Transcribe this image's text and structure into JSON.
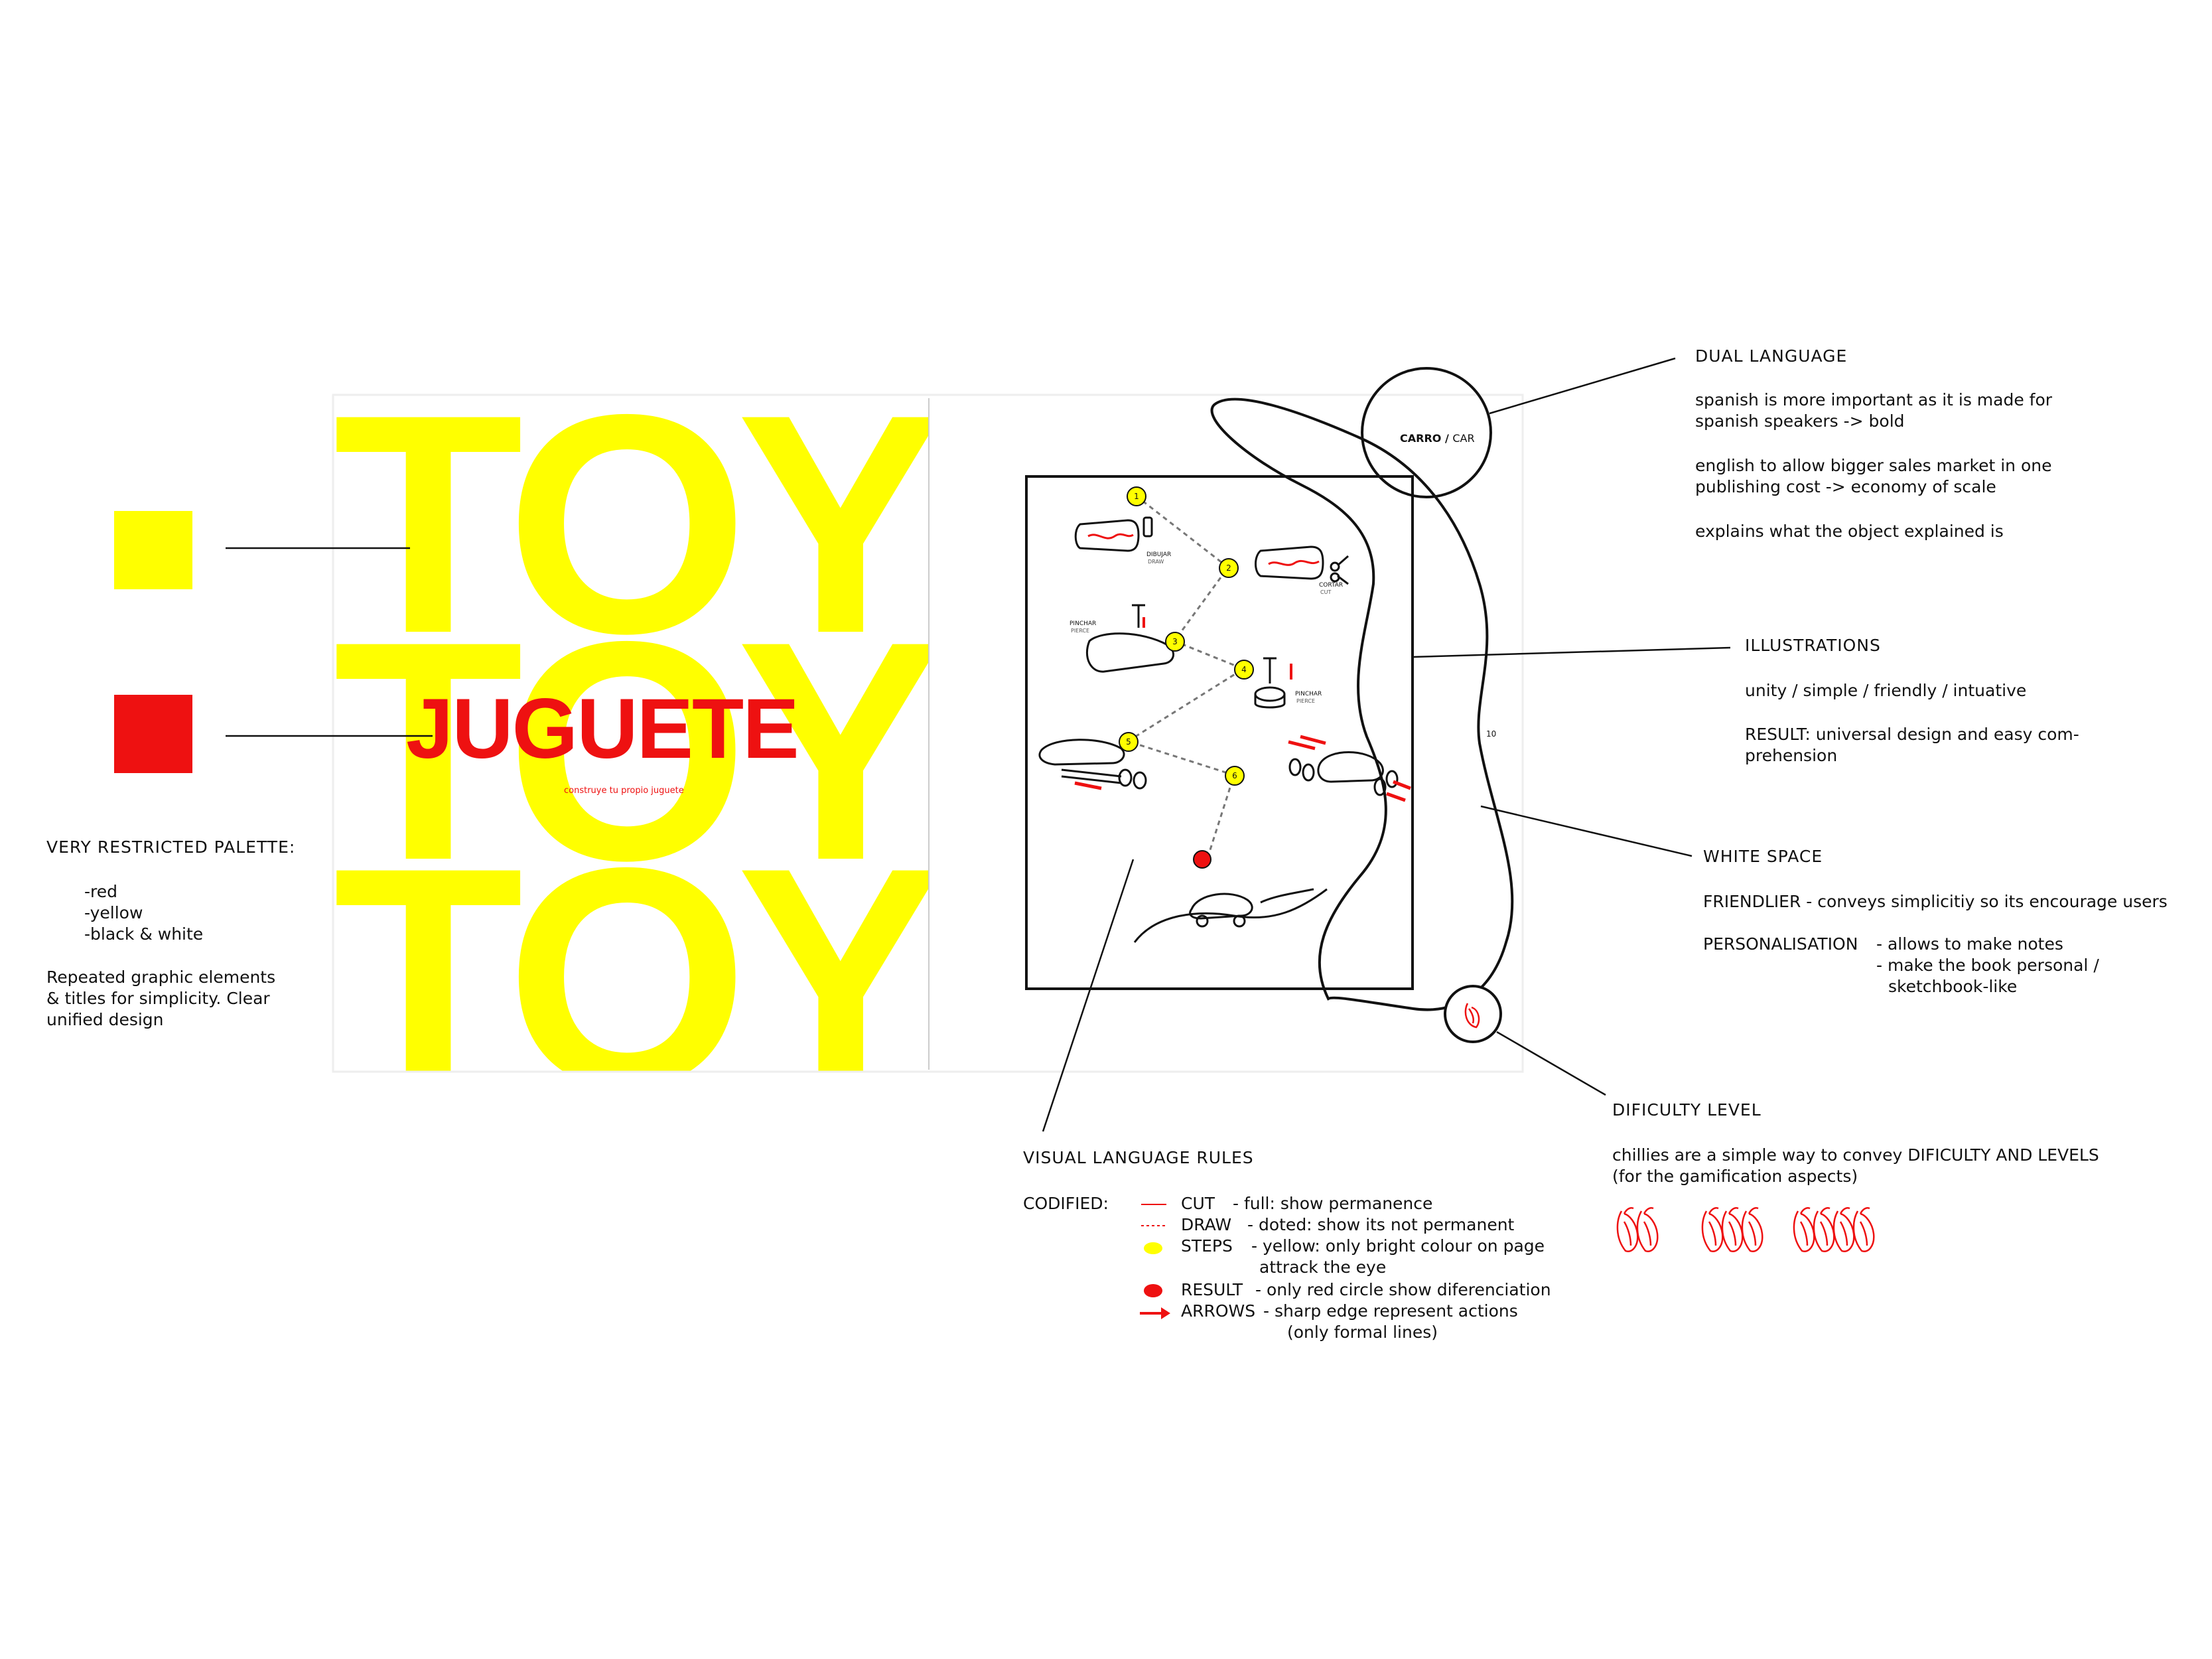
{
  "colors": {
    "yellow": "#ffff00",
    "red": "#ee1111",
    "black": "#111111",
    "white": "#ffffff"
  },
  "palette_panel": {
    "title": "VERY RESTRICTED PALETTE:",
    "items": [
      "-red",
      "-yellow",
      "-black & white"
    ],
    "note_lines": [
      "Repeated graphic elements",
      "& titles for simplicity. Clear",
      "unified design"
    ]
  },
  "cover": {
    "toy_words": [
      "TOY",
      "TOY",
      "TOY"
    ],
    "title": "JUGUETE",
    "subtitle": "construye tu propio juguete"
  },
  "page_header": {
    "spanish": "CARRO",
    "separator": " / ",
    "english": "CAR"
  },
  "page_number": "10",
  "steps": [
    "1",
    "2",
    "3",
    "4",
    "5",
    "6"
  ],
  "step_labels": {
    "draw": [
      "DIBUJAR",
      "DRAW"
    ],
    "cut": [
      "CORTAR",
      "CUT"
    ],
    "pierce_a": [
      "PINCHAR",
      "PIERCE"
    ],
    "pierce_b": [
      "PINCHAR",
      "PIERCE"
    ]
  },
  "dual_language": {
    "title": "DUAL LANGUAGE",
    "p1": [
      "spanish is more important as it is made for",
      "spanish speakers -> bold"
    ],
    "p2": [
      "english to allow bigger sales market in one",
      "publishing cost -> economy of scale"
    ],
    "p3": "explains what the object explained is"
  },
  "illustrations": {
    "title": "ILLUSTRATIONS",
    "line1": "unity / simple / friendly / intuative",
    "line2": [
      "RESULT: universal design and easy com-",
      "prehension"
    ]
  },
  "white_space": {
    "title": "WHITE SPACE",
    "friendlier": "FRIENDLIER  -  conveys simplicitiy so its encourage users",
    "personalisation_label": "PERSONALISATION",
    "personalisation_lines": [
      "-  allows to make notes",
      "-  make the book personal /",
      "sketchbook-like"
    ]
  },
  "difficulty": {
    "title": "DIFICULTY LEVEL",
    "lines": [
      "chillies are a simple way to convey DIFICULTY AND LEVELS",
      "(for the gamification aspects)"
    ],
    "level_counts": [
      2,
      3,
      4
    ]
  },
  "visual_language": {
    "title": "VISUAL LANGUAGE RULES",
    "codified": "CODIFIED:",
    "rules": [
      {
        "name": "CUT",
        "desc": "-  full: show permanence"
      },
      {
        "name": "DRAW",
        "desc": "-  doted: show its not permanent"
      },
      {
        "name": "STEPS",
        "desc": "-  yellow: only bright colour on page",
        "desc2": "attrack the eye"
      },
      {
        "name": "RESULT",
        "desc": "-  only red circle show diferenciation"
      },
      {
        "name": "ARROWS",
        "desc": "-  sharp edge represent actions",
        "desc2": "(only formal lines)"
      }
    ]
  }
}
